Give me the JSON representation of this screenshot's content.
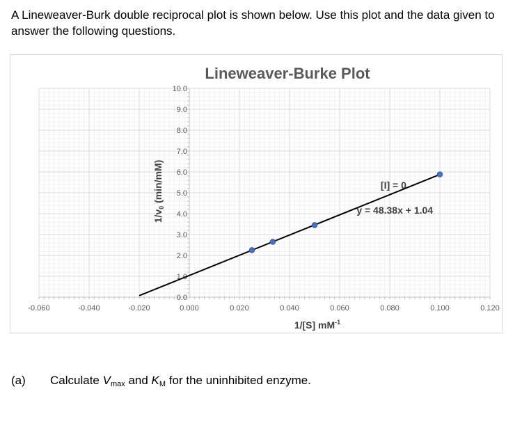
{
  "intro_text": "A Lineweaver-Burk double reciprocal plot is shown below. Use this plot and the data given to answer the following questions.",
  "question": {
    "number": "(a)",
    "prefix": "Calculate ",
    "var1": "V",
    "var1_sub": "max",
    "middle": " and ",
    "var2": "K",
    "var2_sub": "M",
    "suffix": " for the uninhibited enzyme."
  },
  "chart_data": {
    "type": "scatter",
    "title": "Lineweaver-Burke Plot",
    "xlabel": "1/[S] mM",
    "xlabel_sup": "-1",
    "ylabel": "1/v",
    "ylabel_sub": "0",
    "ylabel_suffix": " (min/mM)",
    "xlim": [
      -0.06,
      0.12
    ],
    "ylim": [
      0,
      10
    ],
    "x_ticks": [
      "-0.060",
      "-0.040",
      "-0.020",
      "0.000",
      "0.020",
      "0.040",
      "0.060",
      "0.080",
      "0.100",
      "0.120"
    ],
    "y_ticks": [
      "0.0",
      "1.0",
      "2.0",
      "3.0",
      "4.0",
      "5.0",
      "6.0",
      "7.0",
      "8.0",
      "9.0",
      "10.0"
    ],
    "grid": true,
    "series": [
      {
        "name": "[I] = 0",
        "color": "#4472c4",
        "x": [
          0.025,
          0.0333,
          0.05,
          0.1
        ],
        "y": [
          2.25,
          2.65,
          3.45,
          5.88
        ]
      }
    ],
    "trendline": {
      "slope": 48.38,
      "intercept": 1.04,
      "x_range": [
        -0.02,
        0.1
      ],
      "color": "#000000",
      "equation_label": "y = 48.38x + 1.04"
    }
  }
}
